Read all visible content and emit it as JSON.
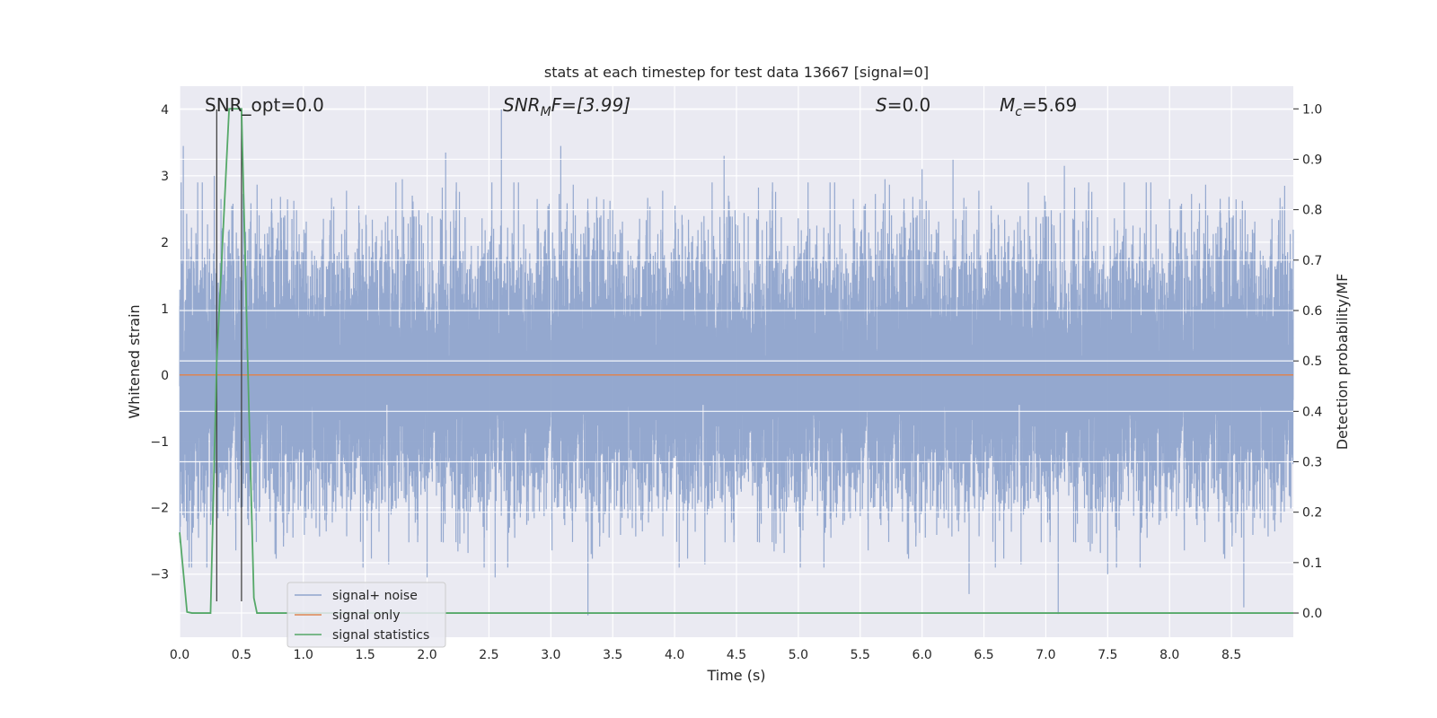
{
  "chart_data": {
    "type": "line",
    "title": "stats at each timestep for test data 13667 [signal=0]",
    "xlabel": "Time (s)",
    "ylabel": "Whitened strain",
    "ylabel_right": "Detection probability/MF",
    "xlim": [
      0.0,
      9.0
    ],
    "ylim": [
      -3.95,
      4.35
    ],
    "ylim_right": [
      -0.048,
      1.045
    ],
    "xticks": [
      0.0,
      0.5,
      1.0,
      1.5,
      2.0,
      2.5,
      3.0,
      3.5,
      4.0,
      4.5,
      5.0,
      5.5,
      6.0,
      6.5,
      7.0,
      7.5,
      8.0,
      8.5
    ],
    "xtick_labels": [
      "0.0",
      "0.5",
      "1.0",
      "1.5",
      "2.0",
      "2.5",
      "3.0",
      "3.5",
      "4.0",
      "4.5",
      "5.0",
      "5.5",
      "6.0",
      "6.5",
      "7.0",
      "7.5",
      "8.0",
      "8.5"
    ],
    "yticks": [
      4,
      3,
      2,
      1,
      0,
      -1,
      -2,
      -3
    ],
    "ytick_labels": [
      "4",
      "3",
      "2",
      "1",
      "0",
      "−1",
      "−2",
      "−3"
    ],
    "yticks_right": [
      1.0,
      0.9,
      0.8,
      0.7,
      0.6,
      0.5,
      0.4,
      0.3,
      0.2,
      0.1,
      0.0
    ],
    "ytick_labels_right": [
      "1.0",
      "0.9",
      "0.8",
      "0.7",
      "0.6",
      "0.5",
      "0.4",
      "0.3",
      "0.2",
      "0.1",
      "0.0"
    ],
    "grid": true,
    "legend_placement": "lower-left",
    "annotations": {
      "snr_opt": "SNR_opt=0.0",
      "snr_mf_sym": "SNR",
      "snr_mf_sub": "M",
      "snr_mf_tail": "F=[3.99]",
      "s_sym": "S",
      "s_val": "=0.0",
      "mc_sym": "M",
      "mc_sub": "c",
      "mc_val": "=5.69"
    },
    "vlines_x": [
      0.3,
      0.5
    ],
    "series": [
      {
        "name": "signal+ noise",
        "color": "#8fa4cc",
        "sample_rate_hz": 2048,
        "duration_s": 9.0,
        "spikes": [
          {
            "x": 0.03,
            "y": 3.45
          },
          {
            "x": 2.6,
            "y": 4.0
          },
          {
            "x": 2.15,
            "y": 3.35
          },
          {
            "x": 3.08,
            "y": 3.45
          },
          {
            "x": 4.4,
            "y": 3.3
          },
          {
            "x": 6.0,
            "y": 3.1
          },
          {
            "x": 6.25,
            "y": 3.25
          },
          {
            "x": 7.15,
            "y": 3.15
          },
          {
            "x": 8.93,
            "y": 2.85
          },
          {
            "x": 3.3,
            "y": -3.62
          },
          {
            "x": 7.1,
            "y": -3.6
          },
          {
            "x": 8.6,
            "y": -3.5
          },
          {
            "x": 6.38,
            "y": -3.3
          },
          {
            "x": 0.22,
            "y": -2.9
          },
          {
            "x": 0.28,
            "y": 3.0
          },
          {
            "x": 2.0,
            "y": -3.05
          },
          {
            "x": 2.55,
            "y": -3.05
          },
          {
            "x": 7.5,
            "y": -3.0
          },
          {
            "x": 1.8,
            "y": 2.95
          },
          {
            "x": 5.7,
            "y": 2.95
          }
        ]
      },
      {
        "name": "signal only",
        "color": "#dd8452",
        "x": [
          0.0,
          9.0
        ],
        "y": [
          0.0,
          0.0
        ]
      },
      {
        "name": "signal statistics",
        "color": "#55a868",
        "axis": "right",
        "x": [
          0.0,
          0.06,
          0.1,
          0.2,
          0.25,
          0.3,
          0.4,
          0.5,
          0.55,
          0.6,
          0.625,
          0.7,
          1.0,
          2.0,
          4.0,
          6.0,
          8.0,
          9.0
        ],
        "y": [
          0.16,
          0.002,
          0.0,
          0.0,
          0.0,
          0.5,
          1.0,
          1.0,
          0.5,
          0.03,
          0.0,
          0.0,
          0.0,
          0.0,
          0.0,
          0.0,
          0.0,
          0.0
        ]
      }
    ]
  }
}
